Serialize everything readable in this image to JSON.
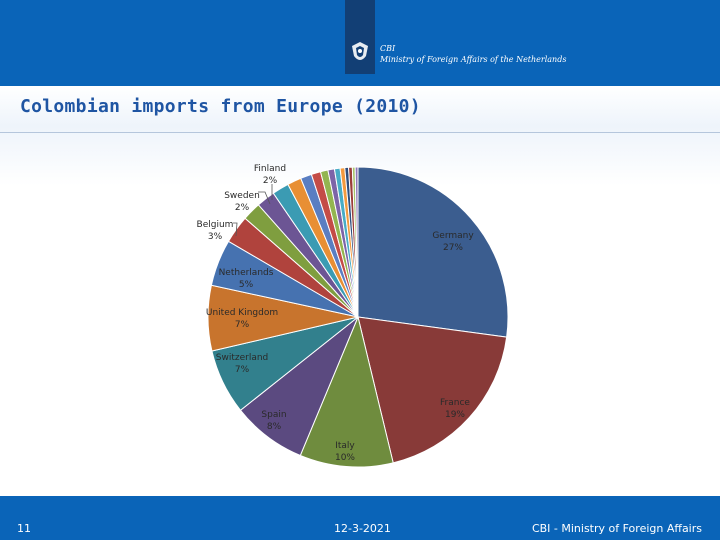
{
  "header": {
    "logo_line1": "CBI",
    "logo_line2": "Ministry of Foreign Affairs of the Netherlands"
  },
  "slide": {
    "title": "Colombian imports from Europe (2010)"
  },
  "footer": {
    "page_number": "11",
    "date": "12-3-2021",
    "organization": "CBI - Ministry of Foreign Affairs"
  },
  "chart_data": {
    "type": "pie",
    "title": "",
    "slices": [
      {
        "label": "Germany",
        "pct": "27%",
        "value": 27,
        "color": "#3b5d8f"
      },
      {
        "label": "France",
        "pct": "19%",
        "value": 19,
        "color": "#883a38"
      },
      {
        "label": "Italy",
        "pct": "10%",
        "value": 10,
        "color": "#6f8c3e"
      },
      {
        "label": "Spain",
        "pct": "8%",
        "value": 8,
        "color": "#5b4a80"
      },
      {
        "label": "Switzerland",
        "pct": "7%",
        "value": 7,
        "color": "#32808d"
      },
      {
        "label": "United Kingdom",
        "pct": "7%",
        "value": 7,
        "color": "#c8742d"
      },
      {
        "label": "Netherlands",
        "pct": "5%",
        "value": 5,
        "color": "#4672b0"
      },
      {
        "label": "Belgium",
        "pct": "3%",
        "value": 3,
        "color": "#b0433d"
      },
      {
        "label": "Sweden",
        "pct": "2%",
        "value": 2,
        "color": "#7f9e3f"
      },
      {
        "label": "Finland",
        "pct": "2%",
        "value": 2,
        "color": "#6c5594"
      },
      {
        "label": "",
        "value": 1.8,
        "color": "#3b9bb3"
      },
      {
        "label": "",
        "value": 1.5,
        "color": "#e88f34"
      },
      {
        "label": "",
        "value": 1.2,
        "color": "#5a7ec2"
      },
      {
        "label": "",
        "value": 1.0,
        "color": "#c44c47"
      },
      {
        "label": "",
        "value": 0.8,
        "color": "#93b550"
      },
      {
        "label": "",
        "value": 0.7,
        "color": "#7d64a8"
      },
      {
        "label": "",
        "value": 0.6,
        "color": "#48acc6"
      },
      {
        "label": "",
        "value": 0.5,
        "color": "#f39a3f"
      },
      {
        "label": "",
        "value": 0.4,
        "color": "#2f4f7d"
      },
      {
        "label": "",
        "value": 0.4,
        "color": "#9b3e3a"
      },
      {
        "label": "",
        "value": 0.3,
        "color": "#a6c46a"
      },
      {
        "label": "",
        "value": 0.3,
        "color": "#8f78b8"
      }
    ]
  }
}
